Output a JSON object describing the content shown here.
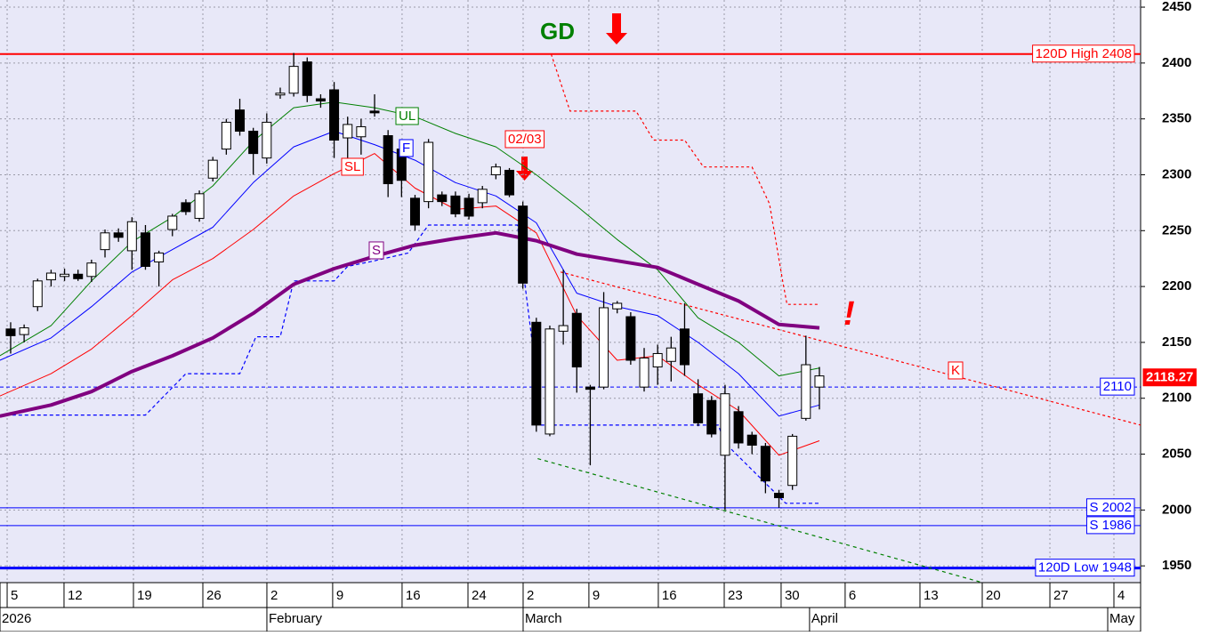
{
  "chart_data": {
    "type": "candlestick",
    "x": [
      0,
      1,
      2,
      3,
      4,
      5,
      6,
      7,
      8,
      9,
      10,
      11,
      12,
      13,
      14,
      15,
      16,
      17,
      18,
      19,
      20,
      21,
      22,
      23,
      24,
      25,
      26,
      27,
      28,
      29,
      30,
      31,
      32,
      33,
      34,
      35,
      36,
      37,
      38,
      39,
      40,
      41,
      42,
      43,
      44,
      45,
      46,
      47,
      48,
      49,
      50,
      51,
      52,
      53,
      54,
      55,
      56,
      57,
      58,
      59,
      60
    ],
    "open": [
      2162,
      2157,
      2182,
      2206,
      2209,
      2211,
      2209,
      2233,
      2248,
      2232,
      2248,
      2222,
      2251,
      2275,
      2261,
      2297,
      2323,
      2358,
      2339,
      2315,
      2372,
      2373,
      2401,
      2368,
      2376,
      2333,
      2334,
      2357,
      2335,
      2323,
      2279,
      2276,
      2282,
      2281,
      2279,
      2275,
      2300,
      2304,
      2272,
      2168,
      2068,
      2160,
      2176,
      2110,
      2110,
      2180,
      2173,
      2110,
      2128,
      2133,
      2162,
      2104,
      2098,
      2049,
      2088,
      2067,
      2057,
      2015,
      2022,
      2082,
      2110
    ],
    "high": [
      2168,
      2166,
      2207,
      2215,
      2216,
      2215,
      2224,
      2251,
      2252,
      2262,
      2255,
      2232,
      2265,
      2278,
      2286,
      2316,
      2350,
      2368,
      2342,
      2355,
      2378,
      2409,
      2405,
      2372,
      2383,
      2352,
      2350,
      2372,
      2340,
      2330,
      2282,
      2332,
      2285,
      2285,
      2283,
      2290,
      2310,
      2306,
      2276,
      2172,
      2165,
      2215,
      2180,
      2112,
      2195,
      2187,
      2177,
      2145,
      2148,
      2155,
      2185,
      2117,
      2102,
      2112,
      2093,
      2070,
      2060,
      2018,
      2068,
      2156,
      2128
    ],
    "low": [
      2140,
      2150,
      2178,
      2200,
      2205,
      2205,
      2204,
      2226,
      2240,
      2215,
      2215,
      2200,
      2245,
      2264,
      2258,
      2294,
      2318,
      2335,
      2300,
      2310,
      2368,
      2370,
      2365,
      2360,
      2315,
      2315,
      2318,
      2352,
      2280,
      2280,
      2250,
      2270,
      2272,
      2262,
      2260,
      2270,
      2296,
      2280,
      2198,
      2070,
      2066,
      2148,
      2105,
      2040,
      2108,
      2176,
      2130,
      2106,
      2112,
      2115,
      2120,
      2075,
      2065,
      2000,
      2055,
      2050,
      2015,
      2002,
      2018,
      2080,
      2090
    ],
    "close": [
      2156,
      2163,
      2205,
      2212,
      2211,
      2207,
      2221,
      2248,
      2244,
      2258,
      2218,
      2230,
      2263,
      2267,
      2283,
      2313,
      2347,
      2339,
      2319,
      2347,
      2373,
      2397,
      2371,
      2366,
      2331,
      2345,
      2343,
      2356,
      2292,
      2295,
      2255,
      2329,
      2276,
      2265,
      2263,
      2287,
      2307,
      2282,
      2203,
      2076,
      2162,
      2165,
      2128,
      2108,
      2181,
      2185,
      2134,
      2136,
      2140,
      2145,
      2130,
      2078,
      2068,
      2104,
      2060,
      2058,
      2026,
      2011,
      2066,
      2130,
      2120
    ],
    "up_color": "#ffffff",
    "down_color": "#000000",
    "xlim": [
      -0.79,
      83.83
    ],
    "ylim": [
      1935,
      2456.4
    ],
    "yticks": [
      1950,
      2000,
      2050,
      2100,
      2150,
      2200,
      2250,
      2300,
      2350,
      2400,
      2450
    ],
    "xticks": [
      {
        "value": -0.26,
        "label": "5"
      },
      {
        "value": 3.96,
        "label": "12"
      },
      {
        "value": 9.11,
        "label": "19"
      },
      {
        "value": 14.26,
        "label": "26"
      },
      {
        "value": 19.01,
        "label": "2"
      },
      {
        "value": 23.89,
        "label": "9"
      },
      {
        "value": 29.04,
        "label": "16"
      },
      {
        "value": 33.93,
        "label": "24"
      },
      {
        "value": 38.02,
        "label": "2"
      },
      {
        "value": 42.9,
        "label": "9"
      },
      {
        "value": 48.05,
        "label": "16"
      },
      {
        "value": 52.94,
        "label": "23"
      },
      {
        "value": 57.16,
        "label": "30"
      },
      {
        "value": 61.91,
        "label": "6"
      },
      {
        "value": 67.46,
        "label": "13"
      },
      {
        "value": 72.08,
        "label": "20"
      },
      {
        "value": 77.1,
        "label": "27"
      },
      {
        "value": 81.85,
        "label": "4"
      }
    ],
    "month_ticks": [
      {
        "value": -0.79,
        "label": "2026"
      },
      {
        "value": 19.01,
        "label": "February"
      },
      {
        "value": 38.02,
        "label": "March"
      },
      {
        "value": 59.27,
        "label": "April"
      },
      {
        "value": 81.39,
        "label": "May"
      }
    ],
    "grid": true,
    "overlays": [
      {
        "name": "UL",
        "color": "#008000",
        "width": 1,
        "x": [
          -0.8,
          3,
          6,
          9,
          12,
          15,
          18,
          21,
          24,
          27,
          30,
          33,
          36,
          39,
          42,
          45,
          48,
          51,
          54,
          57,
          60
        ],
        "values": [
          2138,
          2165,
          2205,
          2240,
          2262,
          2290,
          2330,
          2360,
          2365,
          2360,
          2352,
          2337,
          2325,
          2300,
          2272,
          2242,
          2215,
          2172,
          2150,
          2120,
          2127
        ]
      },
      {
        "name": "F",
        "color": "#0000ff",
        "width": 1,
        "x": [
          -0.8,
          3,
          6,
          9,
          12,
          15,
          18,
          21,
          24,
          27,
          30,
          33,
          36,
          39,
          42,
          45,
          48,
          51,
          54,
          57,
          60
        ],
        "values": [
          2134,
          2154,
          2182,
          2213,
          2233,
          2253,
          2293,
          2325,
          2339,
          2327,
          2313,
          2293,
          2281,
          2257,
          2194,
          2182,
          2174,
          2150,
          2122,
          2084,
          2094
        ]
      },
      {
        "name": "SL",
        "color": "#ff0000",
        "width": 1,
        "x": [
          -0.8,
          3,
          6,
          9,
          12,
          15,
          18,
          21,
          24,
          27,
          30,
          33,
          36,
          39,
          42,
          45,
          48,
          51,
          54,
          57,
          60
        ],
        "values": [
          2102,
          2122,
          2144,
          2174,
          2206,
          2225,
          2251,
          2281,
          2301,
          2319,
          2288,
          2269,
          2272,
          2248,
          2174,
          2134,
          2138,
          2112,
          2089,
          2049,
          2062
        ]
      },
      {
        "name": "S",
        "color": "#800080",
        "width": 4,
        "x": [
          -0.8,
          3,
          6,
          9,
          12,
          15,
          18,
          21,
          24,
          27,
          30,
          33,
          36,
          39,
          42,
          45,
          48,
          51,
          54,
          57,
          60
        ],
        "values": [
          2084,
          2094,
          2106,
          2124,
          2138,
          2154,
          2176,
          2202,
          2216,
          2227,
          2237,
          2243,
          2248,
          2241,
          2229,
          2223,
          2217,
          2202,
          2187,
          2166,
          2163
        ]
      }
    ],
    "lines": [
      {
        "color": "#0000ff",
        "dash": "4 3",
        "x": [
          -0.8,
          10,
          13,
          17,
          18.2,
          20,
          21,
          24,
          25,
          27,
          29.5,
          31,
          37.6,
          38.8,
          39.2,
          52.5,
          53,
          56,
          57.5,
          60
        ],
        "values": [
          2085,
          2085,
          2122,
          2122,
          2155,
          2155,
          2205,
          2205,
          2218,
          2223,
          2230,
          2255,
          2255,
          2140,
          2076,
          2076,
          2060,
          2024,
          2006,
          2006
        ]
      },
      {
        "color": "#ff0000",
        "dash": "3 3",
        "x": [
          40.1,
          41.5,
          46.4,
          47.7,
          50,
          51.4,
          55,
          56.3,
          57.3,
          57.6,
          59.9
        ],
        "values": [
          2408,
          2357,
          2357,
          2331,
          2331,
          2307,
          2307,
          2274,
          2203,
          2184,
          2184
        ]
      },
      {
        "name": "K",
        "color": "#ff0000",
        "dash": "3 3",
        "x": [
          40.8,
          83.83
        ],
        "values": [
          2213,
          2076
        ]
      },
      {
        "color": "#008000",
        "dash": "4 4",
        "x": [
          39.1,
          72.1
        ],
        "values": [
          2046,
          1935
        ]
      }
    ],
    "levels": [
      {
        "label": "120D High 2408",
        "value": 2408,
        "color": "#ff0000",
        "width": 2
      },
      {
        "value": 2110,
        "color": "#0000ff",
        "width": 1,
        "dash": "4 3"
      },
      {
        "label": "S 2002",
        "value": 2002,
        "color": "#0000ff",
        "width": 1
      },
      {
        "label": "S 1986",
        "value": 1986,
        "color": "#0000ff",
        "width": 1
      },
      {
        "label": "120D Low 1948",
        "value": 1948,
        "color": "#0000ff",
        "width": 3
      }
    ],
    "last_price": 2118.27,
    "last_price_color": "#ff0000",
    "annotations": [
      {
        "text": "GD",
        "color": "#008000"
      },
      {
        "text": "02/03",
        "color": "#ff0000"
      },
      {
        "text": "!",
        "color": "#ff0000"
      }
    ]
  }
}
